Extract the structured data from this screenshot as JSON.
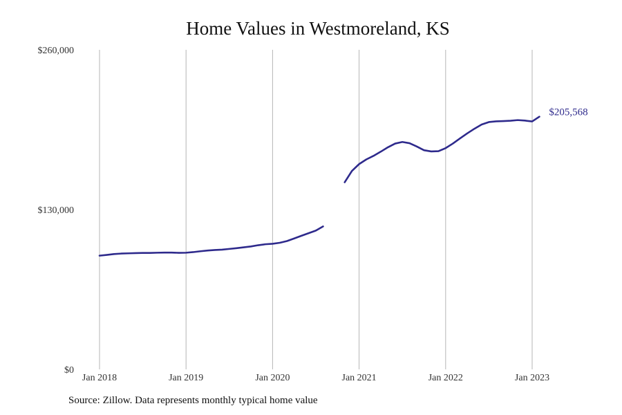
{
  "chart_data": {
    "type": "line",
    "title": "Home Values in Westmoreland, KS",
    "xlabel": "",
    "ylabel": "",
    "ylim": [
      0,
      260000
    ],
    "y_ticks": [
      0,
      130000,
      260000
    ],
    "y_tick_labels": [
      "$0",
      "$130,000",
      "$260,000"
    ],
    "x_ticks": [
      "2018-01",
      "2019-01",
      "2020-01",
      "2021-01",
      "2022-01",
      "2023-01"
    ],
    "x_tick_labels": [
      "Jan 2018",
      "Jan 2019",
      "Jan 2020",
      "Jan 2021",
      "Jan 2022",
      "Jan 2023"
    ],
    "grid": "vertical",
    "line_color": "#2e2a8c",
    "end_label": "$205,568",
    "series": [
      {
        "segments": [
          [
            [
              "2018-01",
              92500
            ],
            [
              "2018-02",
              93100
            ],
            [
              "2018-03",
              93800
            ],
            [
              "2018-04",
              94200
            ],
            [
              "2018-05",
              94400
            ],
            [
              "2018-06",
              94600
            ],
            [
              "2018-07",
              94700
            ],
            [
              "2018-08",
              94700
            ],
            [
              "2018-09",
              94900
            ],
            [
              "2018-10",
              95000
            ],
            [
              "2018-11",
              95000
            ],
            [
              "2018-12",
              94800
            ],
            [
              "2019-01",
              94900
            ],
            [
              "2019-02",
              95400
            ],
            [
              "2019-03",
              96100
            ],
            [
              "2019-04",
              96700
            ],
            [
              "2019-05",
              97100
            ],
            [
              "2019-06",
              97400
            ],
            [
              "2019-07",
              98000
            ],
            [
              "2019-08",
              98600
            ],
            [
              "2019-09",
              99300
            ],
            [
              "2019-10",
              100000
            ],
            [
              "2019-11",
              101000
            ],
            [
              "2019-12",
              101800
            ],
            [
              "2020-01",
              102200
            ],
            [
              "2020-02",
              103000
            ],
            [
              "2020-03",
              104400
            ],
            [
              "2020-04",
              106500
            ],
            [
              "2020-05",
              108700
            ],
            [
              "2020-06",
              110800
            ],
            [
              "2020-07",
              112900
            ],
            [
              "2020-08",
              116300
            ]
          ],
          [
            [
              "2020-11",
              152200
            ],
            [
              "2020-12",
              161400
            ],
            [
              "2021-01",
              167000
            ],
            [
              "2021-02",
              170800
            ],
            [
              "2021-03",
              173700
            ],
            [
              "2021-04",
              177100
            ],
            [
              "2021-05",
              180700
            ],
            [
              "2021-06",
              183700
            ],
            [
              "2021-07",
              185000
            ],
            [
              "2021-08",
              184000
            ],
            [
              "2021-09",
              181300
            ],
            [
              "2021-10",
              178300
            ],
            [
              "2021-11",
              177300
            ],
            [
              "2021-12",
              177500
            ],
            [
              "2022-01",
              180000
            ],
            [
              "2022-02",
              183700
            ],
            [
              "2022-03",
              187900
            ],
            [
              "2022-04",
              192000
            ],
            [
              "2022-05",
              195800
            ],
            [
              "2022-06",
              199200
            ],
            [
              "2022-07",
              201200
            ],
            [
              "2022-08",
              201800
            ],
            [
              "2022-09",
              202000
            ],
            [
              "2022-10",
              202300
            ],
            [
              "2022-11",
              202800
            ],
            [
              "2022-12",
              202400
            ],
            [
              "2023-01",
              201700
            ],
            [
              "2023-02",
              205568
            ]
          ]
        ]
      }
    ]
  },
  "source_note": "Source: Zillow. Data represents monthly typical home value"
}
